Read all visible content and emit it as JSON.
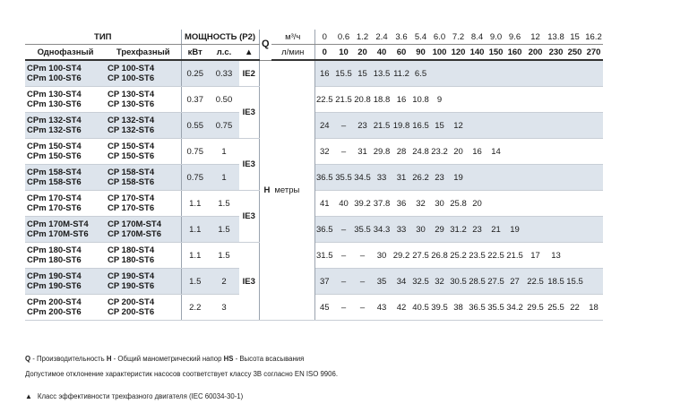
{
  "header": {
    "type": "ТИП",
    "power": "МОЩНОСТЬ (P2)",
    "single_phase": "Однофазный",
    "three_phase": "Трехфазный",
    "kw": "кВт",
    "hp": "л.с.",
    "eff_mark": "▲",
    "q": "Q",
    "m3h_unit": "м³/ч",
    "lmin_unit": "л/мин",
    "m3h": [
      "0",
      "0.6",
      "1.2",
      "2.4",
      "3.6",
      "5.4",
      "6.0",
      "7.2",
      "8.4",
      "9.0",
      "9.6",
      "12",
      "13.8",
      "15",
      "16.2"
    ],
    "lmin": [
      "0",
      "10",
      "20",
      "40",
      "60",
      "90",
      "100",
      "120",
      "140",
      "150",
      "160",
      "200",
      "230",
      "250",
      "270"
    ]
  },
  "h_label": "H",
  "h_unit": "метры",
  "rows": [
    {
      "single": [
        "CPm 100-ST4",
        "CPm 100-ST6"
      ],
      "three": [
        "CP 100-ST4",
        "CP 100-ST6"
      ],
      "kw": "0.25",
      "hp": "0.33",
      "ie": "IE2",
      "h": [
        "16",
        "15.5",
        "15",
        "13.5",
        "11.2",
        "6.5",
        "",
        "",
        "",
        "",
        "",
        "",
        "",
        "",
        ""
      ]
    },
    {
      "single": [
        "CPm 130-ST4",
        "CPm 130-ST6"
      ],
      "three": [
        "CP 130-ST4",
        "CP 130-ST6"
      ],
      "kw": "0.37",
      "hp": "0.50",
      "ie": "IE3",
      "h": [
        "22.5",
        "21.5",
        "20.8",
        "18.8",
        "16",
        "10.8",
        "9",
        "",
        "",
        "",
        "",
        "",
        "",
        "",
        ""
      ]
    },
    {
      "single": [
        "CPm 132-ST4",
        "CPm 132-ST6"
      ],
      "three": [
        "CP 132-ST4",
        "CP 132-ST6"
      ],
      "kw": "0.55",
      "hp": "0.75",
      "ie": "",
      "h": [
        "24",
        "–",
        "23",
        "21.5",
        "19.8",
        "16.5",
        "15",
        "12",
        "",
        "",
        "",
        "",
        "",
        "",
        ""
      ]
    },
    {
      "single": [
        "CPm 150-ST4",
        "CPm 150-ST6"
      ],
      "three": [
        "CP 150-ST4",
        "CP 150-ST6"
      ],
      "kw": "0.75",
      "hp": "1",
      "ie": "IE3",
      "h": [
        "32",
        "–",
        "31",
        "29.8",
        "28",
        "24.8",
        "23.2",
        "20",
        "16",
        "14",
        "",
        "",
        "",
        "",
        ""
      ]
    },
    {
      "single": [
        "CPm 158-ST4",
        "CPm 158-ST6"
      ],
      "three": [
        "CP 158-ST4",
        "CP 158-ST6"
      ],
      "kw": "0.75",
      "hp": "1",
      "ie": "",
      "h": [
        "36.5",
        "35.5",
        "34.5",
        "33",
        "31",
        "26.2",
        "23",
        "19",
        "",
        "",
        "",
        "",
        "",
        "",
        ""
      ]
    },
    {
      "single": [
        "CPm 170-ST4",
        "CPm 170-ST6"
      ],
      "three": [
        "CP 170-ST4",
        "CP 170-ST6"
      ],
      "kw": "1.1",
      "hp": "1.5",
      "ie": "IE3",
      "h": [
        "41",
        "40",
        "39.2",
        "37.8",
        "36",
        "32",
        "30",
        "25.8",
        "20",
        "",
        "",
        "",
        "",
        "",
        ""
      ]
    },
    {
      "single": [
        "CPm 170M-ST4",
        "CPm 170M-ST6"
      ],
      "three": [
        "CP 170M-ST4",
        "CP 170M-ST6"
      ],
      "kw": "1.1",
      "hp": "1.5",
      "ie": "",
      "h": [
        "36.5",
        "–",
        "35.5",
        "34.3",
        "33",
        "30",
        "29",
        "31.2",
        "23",
        "21",
        "19",
        "",
        "",
        "",
        ""
      ]
    },
    {
      "single": [
        "CPm 180-ST4",
        "CPm 180-ST6"
      ],
      "three": [
        "CP 180-ST4",
        "CP 180-ST6"
      ],
      "kw": "1.1",
      "hp": "1.5",
      "ie": "IE3",
      "h": [
        "31.5",
        "–",
        "–",
        "30",
        "29.2",
        "27.5",
        "26.8",
        "25.2",
        "23.5",
        "22.5",
        "21.5",
        "17",
        "13",
        "",
        ""
      ]
    },
    {
      "single": [
        "CPm 190-ST4",
        "CPm 190-ST6"
      ],
      "three": [
        "CP 190-ST4",
        "CP 190-ST6"
      ],
      "kw": "1.5",
      "hp": "2",
      "ie": "",
      "h": [
        "37",
        "–",
        "–",
        "35",
        "34",
        "32.5",
        "32",
        "30.5",
        "28.5",
        "27.5",
        "27",
        "22.5",
        "18.5",
        "15.5",
        ""
      ]
    },
    {
      "single": [
        "CPm 200-ST4",
        "CPm 200-ST6"
      ],
      "three": [
        "CP 200-ST4",
        "CP 200-ST6"
      ],
      "kw": "2.2",
      "hp": "3",
      "ie": "",
      "h": [
        "45",
        "–",
        "–",
        "43",
        "42",
        "40.5",
        "39.5",
        "38",
        "36.5",
        "35.5",
        "34.2",
        "29.5",
        "25.5",
        "22",
        "18"
      ]
    }
  ],
  "notes": {
    "line1": {
      "q_key": "Q",
      "q_text": " - Производительность  ",
      "h_key": "H",
      "h_text": " - Общий манометрический напор  ",
      "hs_key": "HS",
      "hs_text": " - Высота всасывания"
    },
    "line2": "Допустимое отклонение характеристик насосов соответствует классу 3В согласно EN ISO 9906.",
    "line3_mark": "▲",
    "line3": "Класс эффективности трехфазного двигателя (IEC 60034-30-1)"
  }
}
